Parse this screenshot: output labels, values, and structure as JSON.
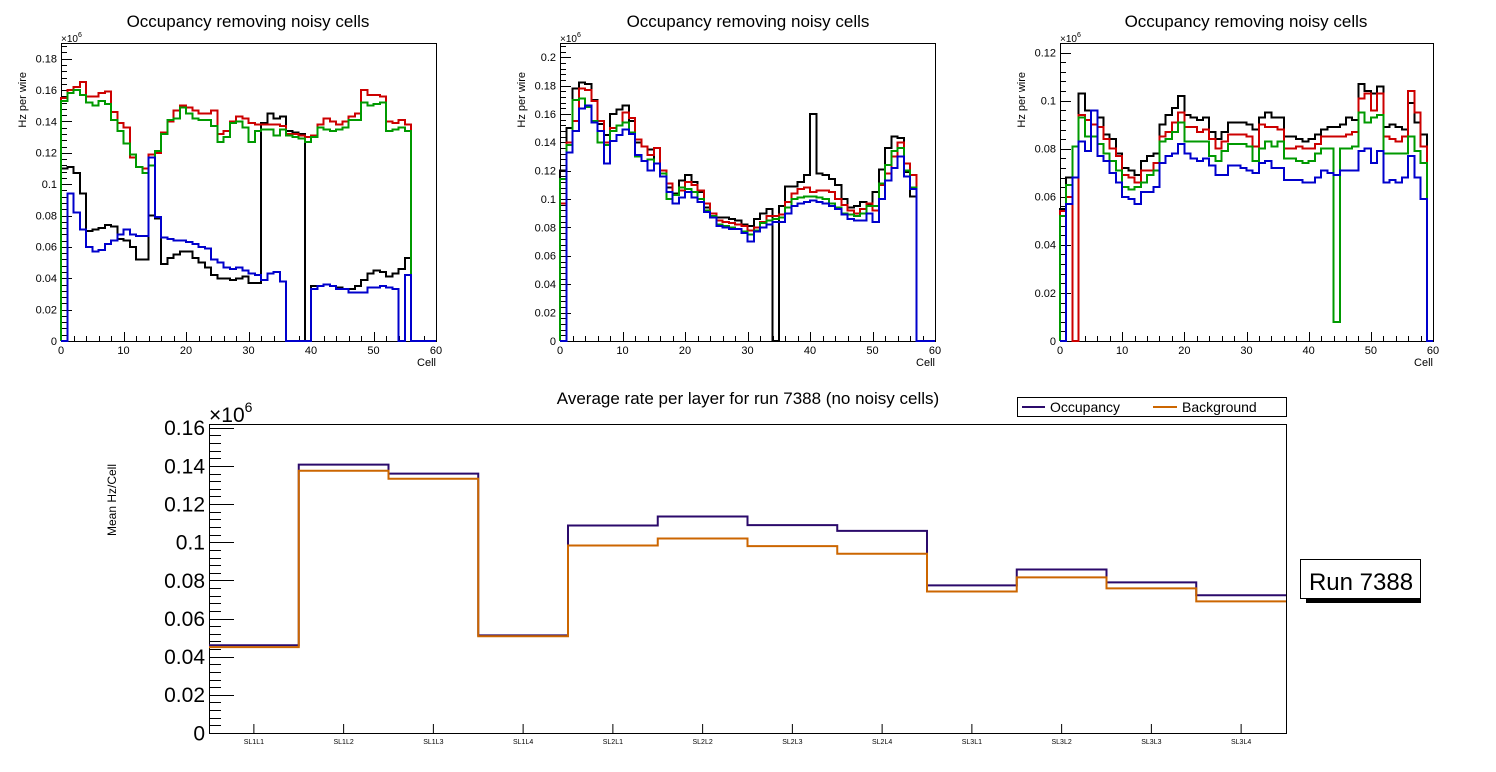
{
  "chart_data": [
    {
      "type": "line",
      "subtype": "step-histogram",
      "title": "Occupancy removing noisy cells",
      "xlabel": "Cell",
      "ylabel": "Hz per wire",
      "y_multiplier": "×10^6",
      "xlim": [
        0,
        60
      ],
      "ylim": [
        0,
        0.19
      ],
      "xticks": [
        0,
        10,
        20,
        30,
        40,
        50,
        60
      ],
      "yticks": [
        0,
        0.02,
        0.04,
        0.06,
        0.08,
        0.1,
        0.12,
        0.14,
        0.16,
        0.18
      ],
      "ytick_labels": [
        "0",
        "0.02",
        "0.04",
        "0.06",
        "0.08",
        "0.1",
        "0.12",
        "0.14",
        "0.16",
        "0.18"
      ],
      "bin_width": 1,
      "series": [
        {
          "name": "black",
          "color": "#000000",
          "values": [
            0.11,
            0.111,
            0.107,
            0.094,
            0.07,
            0.071,
            0.072,
            0.074,
            0.073,
            0.065,
            0.064,
            0.06,
            0.052,
            0.052,
            0.08,
            0.078,
            0.049,
            0.053,
            0.055,
            0.057,
            0.057,
            0.053,
            0.05,
            0.047,
            0.042,
            0.04,
            0.04,
            0.039,
            0.04,
            0.041,
            0.037,
            0.037,
            0.139,
            0.145,
            0.142,
            0.143,
            0.134,
            0.133,
            0.132,
            0,
            0.035,
            0.035,
            0.036,
            0.035,
            0.034,
            0.033,
            0.033,
            0.035,
            0.039,
            0.043,
            0.045,
            0.044,
            0.041,
            0.043,
            0.046,
            0.053,
            0,
            0,
            0,
            0
          ]
        },
        {
          "name": "red",
          "color": "#cc0000",
          "values": [
            0.155,
            0.16,
            0.162,
            0.165,
            0.156,
            0.156,
            0.158,
            0.159,
            0.146,
            0.139,
            0.136,
            0.117,
            0.111,
            0.11,
            0.119,
            0.12,
            0.133,
            0.14,
            0.147,
            0.15,
            0.149,
            0.147,
            0.145,
            0.145,
            0.147,
            0.132,
            0.134,
            0.14,
            0.143,
            0.142,
            0.139,
            0.138,
            0.138,
            0.138,
            0.138,
            0.137,
            0.132,
            0.132,
            0.131,
            0.13,
            0.131,
            0.138,
            0.142,
            0.14,
            0.138,
            0.14,
            0.143,
            0.145,
            0.16,
            0.157,
            0.157,
            0.156,
            0.14,
            0.139,
            0.141,
            0.138,
            0,
            0,
            0,
            0
          ]
        },
        {
          "name": "green",
          "color": "#009900",
          "values": [
            0.153,
            0.158,
            0.16,
            0.157,
            0.152,
            0.15,
            0.153,
            0.151,
            0.141,
            0.134,
            0.126,
            0.119,
            0.111,
            0.107,
            0.112,
            0.121,
            0.132,
            0.141,
            0.142,
            0.149,
            0.145,
            0.142,
            0.141,
            0.141,
            0.137,
            0.127,
            0.13,
            0.139,
            0.14,
            0.136,
            0.127,
            0.134,
            0.135,
            0.135,
            0.131,
            0.135,
            0.131,
            0.13,
            0.129,
            0.127,
            0.13,
            0.136,
            0.135,
            0.134,
            0.135,
            0.136,
            0.141,
            0.141,
            0.152,
            0.15,
            0.151,
            0.152,
            0.134,
            0.135,
            0.136,
            0.134,
            0,
            0,
            0,
            0
          ]
        },
        {
          "name": "blue",
          "color": "#0000cc",
          "values": [
            0,
            0.094,
            0.082,
            0.071,
            0.06,
            0.057,
            0.058,
            0.062,
            0.064,
            0.068,
            0.071,
            0.068,
            0.067,
            0.067,
            0.117,
            0.079,
            0.066,
            0.065,
            0.064,
            0.064,
            0.063,
            0.062,
            0.06,
            0.059,
            0.052,
            0.05,
            0.047,
            0.046,
            0.047,
            0.045,
            0.043,
            0.042,
            0.039,
            0.043,
            0.044,
            0.038,
            0,
            0,
            0,
            0,
            0.033,
            0.035,
            0.036,
            0.035,
            0.033,
            0.033,
            0.031,
            0.031,
            0.031,
            0.034,
            0.034,
            0.035,
            0.034,
            0.033,
            0,
            0.042,
            0,
            0,
            0,
            0
          ]
        }
      ]
    },
    {
      "type": "line",
      "subtype": "step-histogram",
      "title": "Occupancy removing noisy cells",
      "xlabel": "Cell",
      "ylabel": "Hz per wire",
      "y_multiplier": "×10^6",
      "xlim": [
        0,
        60
      ],
      "ylim": [
        0,
        0.21
      ],
      "xticks": [
        0,
        10,
        20,
        30,
        40,
        50,
        60
      ],
      "yticks": [
        0,
        0.02,
        0.04,
        0.06,
        0.08,
        0.1,
        0.12,
        0.14,
        0.16,
        0.18,
        0.2
      ],
      "ytick_labels": [
        "0",
        "0.02",
        "0.04",
        "0.06",
        "0.08",
        "0.1",
        "0.12",
        "0.14",
        "0.16",
        "0.18",
        "0.2"
      ],
      "bin_width": 1,
      "series": [
        {
          "name": "black",
          "color": "#000000",
          "values": [
            0.12,
            0.15,
            0.178,
            0.182,
            0.181,
            0.17,
            0.153,
            0.145,
            0.16,
            0.163,
            0.166,
            0.155,
            0.14,
            0.137,
            0.135,
            0.125,
            0.12,
            0.108,
            0.104,
            0.113,
            0.117,
            0.112,
            0.105,
            0.094,
            0.09,
            0.087,
            0.087,
            0.086,
            0.085,
            0.082,
            0.081,
            0.086,
            0.09,
            0.093,
            0,
            0.095,
            0.109,
            0.109,
            0.112,
            0.117,
            0.16,
            0.118,
            0.117,
            0.114,
            0.11,
            0.1,
            0.094,
            0.095,
            0.098,
            0.096,
            0.105,
            0.121,
            0.136,
            0.144,
            0.143,
            0.119,
            0.102,
            0,
            0,
            0
          ]
        },
        {
          "name": "red",
          "color": "#cc0000",
          "values": [
            0.097,
            0.14,
            0.155,
            0.178,
            0.177,
            0.169,
            0.155,
            0.14,
            0.15,
            0.152,
            0.161,
            0.157,
            0.142,
            0.137,
            0.131,
            0.136,
            0.12,
            0.111,
            0.103,
            0.106,
            0.112,
            0.11,
            0.106,
            0.097,
            0.09,
            0.085,
            0.084,
            0.083,
            0.082,
            0.081,
            0.078,
            0.08,
            0.084,
            0.088,
            0.088,
            0.089,
            0.098,
            0.104,
            0.107,
            0.108,
            0.105,
            0.106,
            0.106,
            0.105,
            0.1,
            0.096,
            0.092,
            0.09,
            0.093,
            0.097,
            0.092,
            0.11,
            0.118,
            0.13,
            0.14,
            0.125,
            0.117,
            0,
            0,
            0
          ]
        },
        {
          "name": "green",
          "color": "#009900",
          "values": [
            0.114,
            0.138,
            0.17,
            0.171,
            0.165,
            0.155,
            0.14,
            0.138,
            0.148,
            0.152,
            0.154,
            0.147,
            0.13,
            0.127,
            0.128,
            0.125,
            0.118,
            0.1,
            0.103,
            0.108,
            0.107,
            0.105,
            0.1,
            0.092,
            0.088,
            0.082,
            0.081,
            0.08,
            0.079,
            0.077,
            0.075,
            0.078,
            0.083,
            0.085,
            0.086,
            0.087,
            0.094,
            0.1,
            0.101,
            0.102,
            0.102,
            0.101,
            0.1,
            0.097,
            0.094,
            0.09,
            0.089,
            0.088,
            0.09,
            0.095,
            0.095,
            0.111,
            0.124,
            0.134,
            0.136,
            0.12,
            0.108,
            0,
            0,
            0
          ]
        },
        {
          "name": "blue",
          "color": "#0000cc",
          "values": [
            0,
            0.133,
            0.148,
            0.164,
            0.166,
            0.154,
            0.148,
            0.125,
            0.141,
            0.145,
            0.149,
            0.146,
            0.131,
            0.127,
            0.12,
            0.125,
            0.116,
            0.105,
            0.097,
            0.101,
            0.105,
            0.101,
            0.098,
            0.091,
            0.087,
            0.081,
            0.08,
            0.079,
            0.079,
            0.076,
            0.07,
            0.077,
            0.08,
            0.082,
            0.084,
            0.084,
            0.09,
            0.095,
            0.097,
            0.098,
            0.099,
            0.098,
            0.097,
            0.095,
            0.093,
            0.089,
            0.086,
            0.085,
            0.085,
            0.09,
            0.084,
            0.1,
            0.113,
            0.122,
            0.13,
            0.116,
            0.107,
            0,
            0,
            0
          ]
        }
      ]
    },
    {
      "type": "line",
      "subtype": "step-histogram",
      "title": "Occupancy removing noisy cells",
      "xlabel": "Cell",
      "ylabel": "Hz per wire",
      "y_multiplier": "×10^6",
      "xlim": [
        0,
        60
      ],
      "ylim": [
        0,
        0.124
      ],
      "xticks": [
        0,
        10,
        20,
        30,
        40,
        50,
        60
      ],
      "yticks": [
        0,
        0.02,
        0.04,
        0.06,
        0.08,
        0.1,
        0.12
      ],
      "ytick_labels": [
        "0",
        "0.02",
        "0.04",
        "0.06",
        "0.08",
        "0.1",
        "0.12"
      ],
      "bin_width": 1,
      "series": [
        {
          "name": "black",
          "color": "#000000",
          "values": [
            0.055,
            0.068,
            0.068,
            0.103,
            0.096,
            0.096,
            0.093,
            0.086,
            0.084,
            0.078,
            0.072,
            0.071,
            0.069,
            0.075,
            0.077,
            0.078,
            0.09,
            0.094,
            0.097,
            0.102,
            0.094,
            0.093,
            0.092,
            0.093,
            0.087,
            0.084,
            0.087,
            0.091,
            0.091,
            0.091,
            0.09,
            0.088,
            0.093,
            0.095,
            0.093,
            0.093,
            0.085,
            0.085,
            0.084,
            0.083,
            0.084,
            0.086,
            0.088,
            0.089,
            0.089,
            0.09,
            0.093,
            0.092,
            0.107,
            0.104,
            0.103,
            0.106,
            0.089,
            0.09,
            0.089,
            0.088,
            0.099,
            0.091,
            0.086,
            0
          ]
        },
        {
          "name": "red",
          "color": "#cc0000",
          "values": [
            0.054,
            0.06,
            0,
            0.094,
            0.092,
            0.09,
            0.089,
            0.084,
            0.08,
            0.077,
            0.069,
            0.068,
            0.066,
            0.071,
            0.071,
            0.074,
            0.085,
            0.087,
            0.091,
            0.095,
            0.089,
            0.089,
            0.087,
            0.088,
            0.084,
            0.08,
            0.083,
            0.086,
            0.086,
            0.086,
            0.085,
            0.081,
            0.09,
            0.089,
            0.089,
            0.088,
            0.08,
            0.08,
            0.081,
            0.08,
            0.08,
            0.082,
            0.085,
            0.085,
            0.085,
            0.085,
            0.086,
            0.087,
            0.101,
            0.103,
            0.096,
            0.103,
            0.085,
            0.084,
            0.083,
            0.085,
            0.104,
            0.095,
            0.081,
            0
          ]
        },
        {
          "name": "green",
          "color": "#009900",
          "values": [
            0.052,
            0.065,
            0.081,
            0.093,
            0.085,
            0.085,
            0.082,
            0.078,
            0.075,
            0.071,
            0.064,
            0.063,
            0.064,
            0.066,
            0.069,
            0.071,
            0.083,
            0.084,
            0.087,
            0.091,
            0.083,
            0.083,
            0.083,
            0.083,
            0.077,
            0.075,
            0.079,
            0.082,
            0.082,
            0.082,
            0.081,
            0.075,
            0.08,
            0.083,
            0.081,
            0.083,
            0.076,
            0.076,
            0.075,
            0.074,
            0.075,
            0.078,
            0.08,
            0.08,
            0.008,
            0.08,
            0.08,
            0.081,
            0.095,
            0.091,
            0.093,
            0.094,
            0.078,
            0.078,
            0.078,
            0.078,
            0.085,
            0.079,
            0.074,
            0
          ]
        },
        {
          "name": "blue",
          "color": "#0000cc",
          "values": [
            0,
            0.057,
            0.068,
            0.083,
            0.079,
            0.096,
            0.077,
            0.075,
            0.07,
            0.066,
            0.06,
            0.059,
            0.057,
            0.062,
            0.062,
            0.064,
            0.074,
            0.077,
            0.078,
            0.082,
            0.078,
            0.076,
            0.075,
            0.076,
            0.073,
            0.069,
            0.069,
            0.073,
            0.073,
            0.072,
            0.071,
            0.07,
            0.074,
            0.075,
            0.072,
            0.072,
            0.067,
            0.067,
            0.067,
            0.066,
            0.066,
            0.068,
            0.071,
            0.07,
            0.069,
            0.071,
            0.071,
            0.071,
            0.079,
            0.08,
            0.074,
            0.079,
            0.066,
            0.067,
            0.066,
            0.068,
            0.077,
            0.068,
            0.059,
            0
          ]
        }
      ]
    },
    {
      "type": "line",
      "subtype": "step-histogram",
      "title": "Average rate per layer for run 7388 (no noisy cells)",
      "xlabel": "",
      "ylabel": "Mean Hz/Cell",
      "y_multiplier": "×10^6",
      "categories": [
        "SL1L1",
        "SL1L2",
        "SL1L3",
        "SL1L4",
        "SL2L1",
        "SL2L2",
        "SL2L3",
        "SL2L4",
        "SL3L1",
        "SL3L2",
        "SL3L3",
        "SL3L4"
      ],
      "ylim": [
        0,
        0.162
      ],
      "yticks": [
        0,
        0.02,
        0.04,
        0.06,
        0.08,
        0.1,
        0.12,
        0.14,
        0.16
      ],
      "ytick_labels": [
        "0",
        "0.02",
        "0.04",
        "0.06",
        "0.08",
        "0.1",
        "0.12",
        "0.14",
        "0.16"
      ],
      "legend": {
        "position": "top-right",
        "entries": [
          "Occupancy",
          "Background"
        ]
      },
      "series": [
        {
          "name": "Occupancy",
          "color": "#2b0a6b",
          "values": [
            0.046,
            0.1407,
            0.136,
            0.0512,
            0.1088,
            0.1135,
            0.109,
            0.106,
            0.0774,
            0.0857,
            0.079,
            0.0722
          ]
        },
        {
          "name": "Background",
          "color": "#cc6600",
          "values": [
            0.045,
            0.1375,
            0.1333,
            0.0507,
            0.0983,
            0.102,
            0.098,
            0.094,
            0.0742,
            0.0816,
            0.0758,
            0.069
          ]
        }
      ],
      "annotation": "Run 7388"
    }
  ],
  "labels": {
    "multiplier_base": "×10",
    "multiplier_exp": "6"
  }
}
